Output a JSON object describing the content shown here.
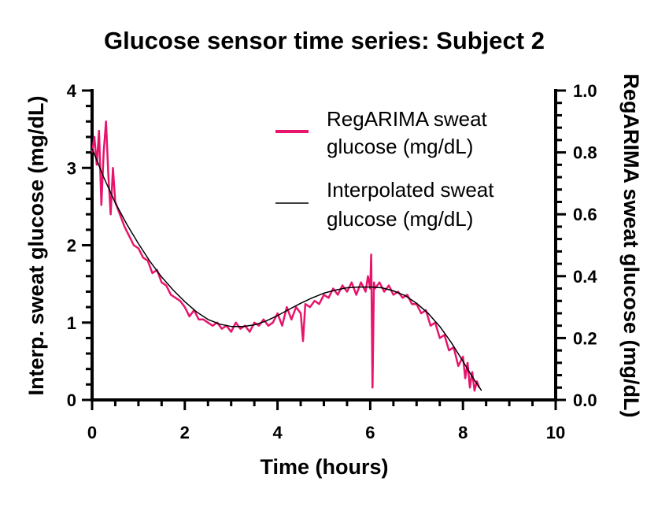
{
  "chart_data": {
    "type": "line",
    "title": "Glucose sensor time series: Subject 2",
    "xlabel": "Time (hours)",
    "ylabel_left": "Interp. sweat glucose (mg/dL)",
    "ylabel_right": "RegARIMA sweat glucose (mg/dL)",
    "xlim": [
      0,
      10
    ],
    "ylim_left": [
      0,
      4
    ],
    "ylim_right": [
      0,
      1.0
    ],
    "xticks": [
      "0",
      "2",
      "4",
      "6",
      "8",
      "10"
    ],
    "yticks_left": [
      "0",
      "1",
      "2",
      "3",
      "4"
    ],
    "yticks_right": [
      "0.0",
      "0.2",
      "0.4",
      "0.6",
      "0.8",
      "1.0"
    ],
    "grid": false,
    "legend_position": "top-right",
    "legend": [
      {
        "line1": "RegARIMA sweat",
        "line2": "glucose (mg/dL)",
        "color": "#e8146c"
      },
      {
        "line1": "Interpolated sweat",
        "line2": "glucose (mg/dL)",
        "color": "#000000"
      }
    ],
    "series": [
      {
        "name": "Interpolated sweat glucose (mg/dL)",
        "axis": "left",
        "color": "#000000",
        "x": [
          0,
          0.25,
          0.5,
          0.75,
          1.0,
          1.25,
          1.5,
          1.75,
          2.0,
          2.25,
          2.5,
          2.75,
          3.0,
          3.25,
          3.5,
          3.75,
          4.0,
          4.25,
          4.5,
          4.75,
          5.0,
          5.25,
          5.5,
          5.75,
          6.0,
          6.25,
          6.5,
          6.75,
          7.0,
          7.25,
          7.5,
          7.75,
          8.0,
          8.2,
          8.4
        ],
        "y": [
          3.25,
          2.88,
          2.55,
          2.27,
          2.02,
          1.79,
          1.59,
          1.42,
          1.27,
          1.14,
          1.04,
          0.98,
          0.95,
          0.95,
          0.97,
          1.02,
          1.09,
          1.17,
          1.25,
          1.32,
          1.38,
          1.42,
          1.45,
          1.46,
          1.46,
          1.45,
          1.41,
          1.35,
          1.25,
          1.12,
          0.95,
          0.74,
          0.5,
          0.3,
          0.12
        ]
      },
      {
        "name": "RegARIMA sweat glucose (mg/dL)",
        "axis": "right",
        "color": "#e8146c",
        "x": [
          0.0,
          0.05,
          0.1,
          0.15,
          0.2,
          0.25,
          0.3,
          0.35,
          0.4,
          0.45,
          0.5,
          0.6,
          0.7,
          0.8,
          0.9,
          1.0,
          1.1,
          1.2,
          1.3,
          1.4,
          1.5,
          1.6,
          1.7,
          1.8,
          1.9,
          2.0,
          2.1,
          2.2,
          2.3,
          2.4,
          2.5,
          2.6,
          2.7,
          2.8,
          2.9,
          3.0,
          3.1,
          3.2,
          3.3,
          3.4,
          3.5,
          3.6,
          3.7,
          3.8,
          3.9,
          4.0,
          4.1,
          4.2,
          4.3,
          4.4,
          4.5,
          4.55,
          4.6,
          4.7,
          4.8,
          4.9,
          5.0,
          5.1,
          5.2,
          5.3,
          5.4,
          5.5,
          5.6,
          5.7,
          5.8,
          5.9,
          5.95,
          6.0,
          6.02,
          6.05,
          6.08,
          6.1,
          6.2,
          6.3,
          6.4,
          6.5,
          6.6,
          6.7,
          6.8,
          6.9,
          7.0,
          7.1,
          7.2,
          7.3,
          7.4,
          7.5,
          7.6,
          7.7,
          7.8,
          7.9,
          8.0,
          8.05,
          8.1,
          8.15,
          8.2,
          8.25,
          8.3,
          8.35
        ],
        "y": [
          0.8,
          0.85,
          0.76,
          0.87,
          0.63,
          0.8,
          0.9,
          0.73,
          0.6,
          0.75,
          0.64,
          0.6,
          0.56,
          0.53,
          0.5,
          0.49,
          0.46,
          0.45,
          0.41,
          0.42,
          0.38,
          0.37,
          0.34,
          0.33,
          0.32,
          0.3,
          0.27,
          0.29,
          0.26,
          0.26,
          0.25,
          0.24,
          0.25,
          0.23,
          0.24,
          0.22,
          0.25,
          0.23,
          0.24,
          0.22,
          0.25,
          0.24,
          0.26,
          0.24,
          0.25,
          0.28,
          0.24,
          0.3,
          0.26,
          0.3,
          0.28,
          0.19,
          0.31,
          0.3,
          0.32,
          0.31,
          0.34,
          0.33,
          0.36,
          0.34,
          0.37,
          0.35,
          0.38,
          0.34,
          0.38,
          0.35,
          0.4,
          0.36,
          0.47,
          0.04,
          0.38,
          0.36,
          0.38,
          0.35,
          0.37,
          0.34,
          0.35,
          0.33,
          0.34,
          0.31,
          0.31,
          0.28,
          0.29,
          0.24,
          0.25,
          0.2,
          0.21,
          0.16,
          0.17,
          0.11,
          0.14,
          0.07,
          0.12,
          0.04,
          0.09,
          0.03,
          0.06,
          0.04
        ]
      }
    ]
  }
}
